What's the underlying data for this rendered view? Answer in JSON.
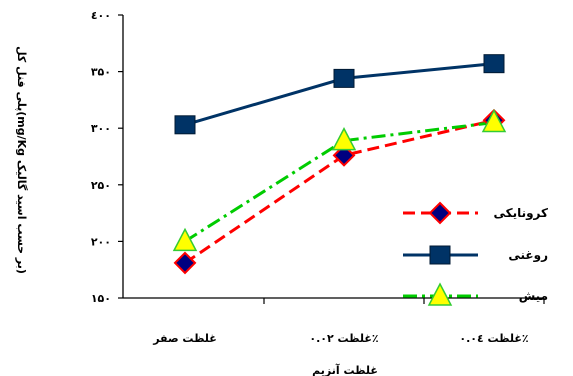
{
  "chart_data": {
    "type": "line",
    "categories": [
      "غلظت صفر",
      "غلظت ۰.۰۲٪",
      "غلظت ۰.۰٤٪"
    ],
    "series": [
      {
        "name": "کرونایکی",
        "values": [
          181,
          276,
          307
        ],
        "color": "#ff0000",
        "dash": "dashed",
        "marker": "diamond",
        "marker_color": "#000080"
      },
      {
        "name": "روغنی",
        "values": [
          303,
          344,
          357
        ],
        "color": "#003366",
        "dash": "solid",
        "marker": "square",
        "marker_color": "#003366"
      },
      {
        "name": "میش",
        "values": [
          200,
          289,
          305
        ],
        "color": "#00cc00",
        "dash": "dashdot",
        "marker": "triangle",
        "marker_color": "#ffff00"
      }
    ],
    "ylim": [
      150,
      400
    ],
    "yticks": [
      150,
      200,
      250,
      300,
      350,
      400
    ],
    "ytick_labels": [
      "۱۵۰",
      "۲۰۰",
      "۲۵۰",
      "۳۰۰",
      "۳۵۰",
      "٤۰۰"
    ],
    "xlabel": "غلظت آنزیم",
    "ylabel": "پلی فنل کل(mg/Kg بر حسب اسید گالیک)",
    "legend_position": "right",
    "grid": false
  }
}
